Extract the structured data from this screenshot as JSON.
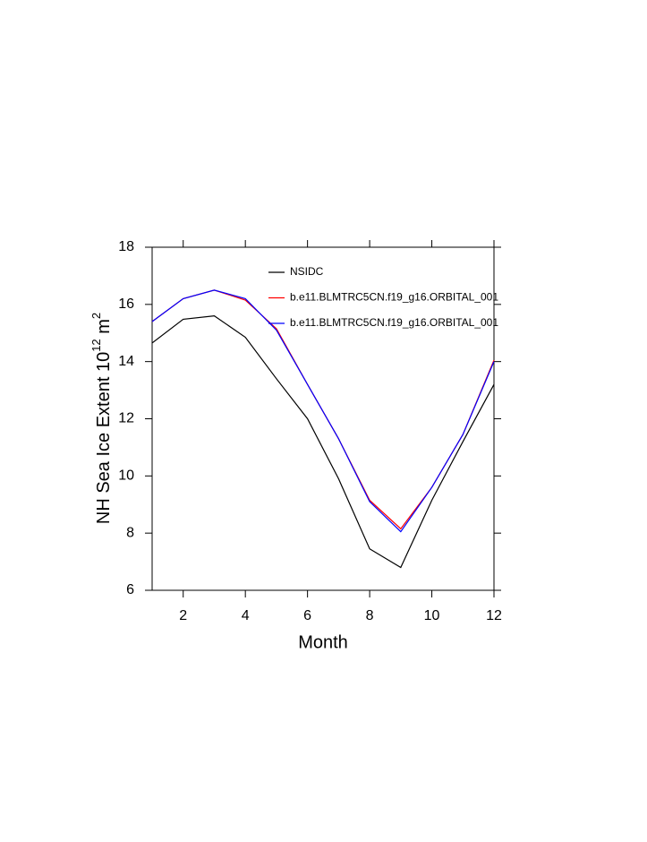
{
  "chart_data": {
    "type": "line",
    "xlabel": "Month",
    "ylabel": {
      "text": "NH Sea Ice Extent 10",
      "exp": "12",
      "unit": " m",
      "unit_exp": "2"
    },
    "x": [
      1,
      2,
      3,
      4,
      5,
      6,
      7,
      8,
      9,
      10,
      11,
      12
    ],
    "series": [
      {
        "name": "NSIDC",
        "color": "#000000",
        "values": [
          14.65,
          15.48,
          15.6,
          14.85,
          13.4,
          12.0,
          9.9,
          7.45,
          6.8,
          9.15,
          11.2,
          13.2
        ]
      },
      {
        "name": "b.e11.BLMTRC5CN.f19_g16.ORBITAL_001",
        "color": "#ff0000",
        "values": [
          15.4,
          16.2,
          16.5,
          16.15,
          15.15,
          13.2,
          11.3,
          9.15,
          8.15,
          9.6,
          11.45,
          14.05
        ]
      },
      {
        "name": "b.e11.BLMTRC5CN.f19_g16.ORBITAL_001",
        "color": "#0000ff",
        "values": [
          15.4,
          16.2,
          16.5,
          16.2,
          15.1,
          13.2,
          11.3,
          9.1,
          8.05,
          9.6,
          11.45,
          14.0
        ]
      }
    ],
    "xlim": [
      1,
      12
    ],
    "ylim": [
      6,
      18
    ],
    "xticks": [
      2,
      4,
      6,
      8,
      10,
      12
    ],
    "yticks": [
      6,
      8,
      10,
      12,
      14,
      16,
      18
    ]
  }
}
